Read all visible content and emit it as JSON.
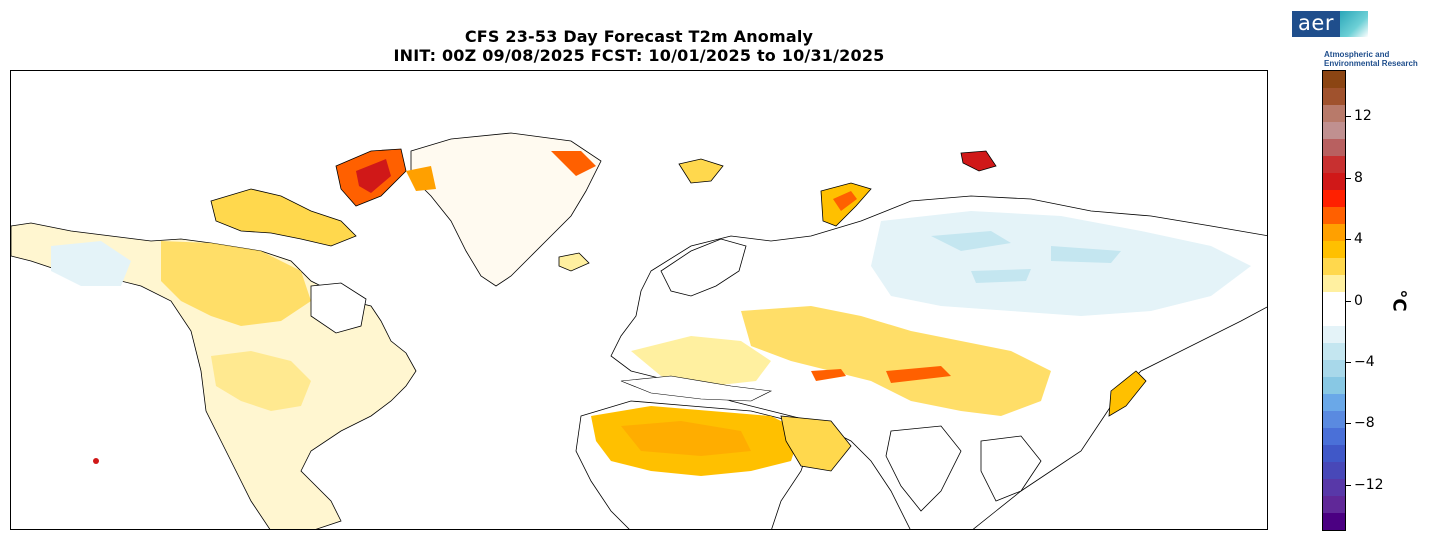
{
  "title": {
    "line1": "CFS 23-53 Day Forecast T2m Anomaly",
    "line2": "INIT: 00Z 09/08/2025    FCST: 10/01/2025 to 10/31/2025"
  },
  "logo": {
    "mark": "aer",
    "tagline": "Atmospheric and Environmental Research"
  },
  "colorbar": {
    "unit": "°C",
    "min": -15,
    "max": 15,
    "tick_labels": [
      "12",
      "8",
      "4",
      "0",
      "−4",
      "−8",
      "−12"
    ],
    "tick_values": [
      12,
      8,
      4,
      0,
      -4,
      -8,
      -12
    ],
    "colors_top_to_bottom": [
      "#8b4513",
      "#a0522d",
      "#b87a6a",
      "#c09090",
      "#b86060",
      "#c83030",
      "#d01818",
      "#ff2000",
      "#ff6000",
      "#ffa000",
      "#ffc000",
      "#ffd84d",
      "#fff0a0",
      "#ffffff",
      "#ffffff",
      "#e4f3f8",
      "#c4e6f0",
      "#a8d8ea",
      "#88c8e4",
      "#6aa8e8",
      "#5a8ae0",
      "#4a70d8",
      "#4058c8",
      "#4848b8",
      "#5838a8",
      "#602898",
      "#4b0082"
    ]
  },
  "map": {
    "region": "Northern Hemisphere (North America, Europe, Africa, Asia)",
    "colors": {
      "warm_light": "#fff0a0",
      "warm": "#ffd84d",
      "warm_strong": "#ffc000",
      "hot": "#ff6000",
      "very_hot": "#d01818",
      "cool": "#c4e6f0",
      "cool_light": "#e4f3f8"
    }
  }
}
